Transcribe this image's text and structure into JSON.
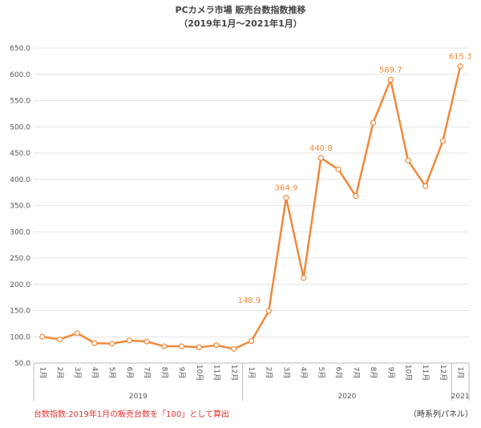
{
  "chart_data": {
    "type": "line",
    "title": "PCカメラ市場 販売台数指数推移",
    "subtitle": "（2019年1月〜2021年1月）",
    "categories": [
      "1月",
      "2月",
      "3月",
      "4月",
      "5月",
      "6月",
      "7月",
      "8月",
      "9月",
      "10月",
      "11月",
      "12月",
      "1月",
      "2月",
      "3月",
      "4月",
      "5月",
      "6月",
      "7月",
      "8月",
      "9月",
      "10月",
      "11月",
      "12月",
      "1月"
    ],
    "years": [
      "2019",
      "2020",
      "2021"
    ],
    "series": [
      {
        "name": "販売台数指数",
        "color": "#f0893a",
        "values": [
          100,
          95,
          107,
          88,
          87,
          93,
          91,
          82,
          82,
          80,
          84,
          77,
          92,
          148.9,
          364.9,
          212,
          440.8,
          419,
          368,
          508,
          589.7,
          436,
          387,
          473,
          615.3
        ],
        "value_labels": [
          null,
          null,
          null,
          null,
          null,
          null,
          null,
          null,
          null,
          null,
          null,
          null,
          null,
          "148.9",
          "364.9",
          null,
          "440.8",
          null,
          null,
          null,
          "589.7",
          null,
          null,
          null,
          "615.3"
        ]
      }
    ],
    "ylim": [
      50,
      650
    ],
    "yticks": [
      {
        "value": 50,
        "label": "50.0"
      },
      {
        "value": 100,
        "label": "100.0"
      },
      {
        "value": 150,
        "label": "150.0"
      },
      {
        "value": 200,
        "label": "200.0"
      },
      {
        "value": 250,
        "label": "250.0"
      },
      {
        "value": 300,
        "label": "300.0"
      },
      {
        "value": 350,
        "label": "350.0"
      },
      {
        "value": 400,
        "label": "400.0"
      },
      {
        "value": 450,
        "label": "450.0"
      },
      {
        "value": 500,
        "label": "500.0"
      },
      {
        "value": 550,
        "label": "550.0"
      },
      {
        "value": 600,
        "label": "600.0"
      },
      {
        "value": 650,
        "label": "650.0"
      }
    ],
    "grid": true,
    "footnote": "台数指数:2019年1月の販売台数を「100」として算出",
    "source": "（時系列パネル）"
  }
}
